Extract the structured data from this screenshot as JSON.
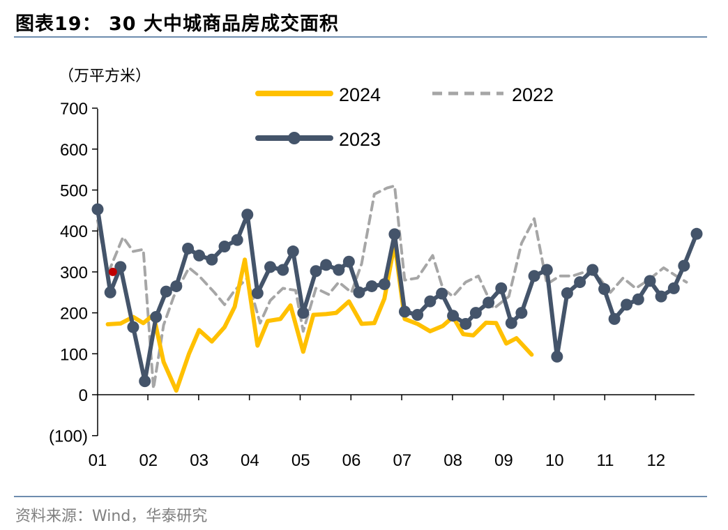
{
  "header": {
    "title": "图表19：  30 大中城商品房成交面积"
  },
  "footer": {
    "source": "资料来源：Wind，华泰研究"
  },
  "colors": {
    "s2024": "#FFC000",
    "s2022": "#A6A6A6",
    "s2023": "#44546A",
    "marker": "#C00000",
    "rule": "#6D8CAE"
  },
  "chart_data": {
    "type": "line",
    "unit_label": "（万平方米）",
    "ylim": [
      -100,
      700
    ],
    "yticks": [
      -100,
      0,
      100,
      200,
      300,
      400,
      500,
      600,
      700
    ],
    "ytick_labels": [
      "(100)",
      "0",
      "100",
      "200",
      "300",
      "400",
      "500",
      "600",
      "700"
    ],
    "xlim": [
      1,
      12.8
    ],
    "xticks": [
      1,
      2,
      3,
      4,
      5,
      6,
      7,
      8,
      9,
      10,
      11,
      12
    ],
    "xtick_labels": [
      "01",
      "02",
      "03",
      "04",
      "05",
      "06",
      "07",
      "08",
      "09",
      "10",
      "11",
      "12"
    ],
    "legend_position": "top",
    "grid": false,
    "series": [
      {
        "name": "2024",
        "style": "solid",
        "x": [
          1.2,
          1.45,
          1.7,
          1.9,
          2.1,
          2.3,
          2.55,
          2.8,
          3.0,
          3.25,
          3.5,
          3.7,
          3.9,
          4.15,
          4.35,
          4.6,
          4.8,
          5.05,
          5.25,
          5.5,
          5.7,
          5.95,
          6.2,
          6.45,
          6.65,
          6.85,
          7.05,
          7.3,
          7.55,
          7.8,
          8.0,
          8.2,
          8.4,
          8.65,
          8.85,
          9.05,
          9.25,
          9.55
        ],
        "y": [
          172,
          174,
          190,
          175,
          195,
          80,
          10,
          100,
          158,
          130,
          165,
          215,
          330,
          120,
          180,
          185,
          218,
          105,
          195,
          197,
          200,
          228,
          173,
          175,
          235,
          370,
          185,
          173,
          155,
          168,
          190,
          148,
          145,
          176,
          175,
          125,
          138,
          98
        ]
      },
      {
        "name": "2022",
        "style": "dashed",
        "x": [
          1.0,
          1.2,
          1.5,
          1.7,
          1.9,
          2.1,
          2.3,
          2.5,
          2.8,
          3.0,
          3.3,
          3.5,
          3.7,
          3.95,
          4.2,
          4.4,
          4.65,
          4.9,
          5.05,
          5.3,
          5.55,
          5.75,
          6.0,
          6.2,
          6.45,
          6.7,
          6.85,
          7.05,
          7.3,
          7.6,
          7.8,
          8.0,
          8.25,
          8.5,
          8.8,
          9.1,
          9.35,
          9.6,
          9.85,
          10.1,
          10.35,
          10.6,
          10.85,
          11.1,
          11.35,
          11.6,
          11.85,
          12.15,
          12.4,
          12.6
        ],
        "y": [
          425,
          295,
          385,
          350,
          355,
          15,
          170,
          240,
          310,
          290,
          250,
          220,
          255,
          285,
          175,
          230,
          260,
          255,
          155,
          260,
          245,
          275,
          250,
          320,
          490,
          505,
          510,
          280,
          285,
          340,
          260,
          240,
          275,
          290,
          210,
          240,
          370,
          430,
          270,
          290,
          290,
          300,
          290,
          250,
          285,
          260,
          280,
          310,
          290,
          275
        ]
      },
      {
        "name": "2023",
        "style": "solid-marker",
        "x": [
          1.0,
          1.25,
          1.45,
          1.7,
          1.93,
          2.15,
          2.35,
          2.55,
          2.78,
          3.0,
          3.25,
          3.5,
          3.75,
          3.95,
          4.15,
          4.4,
          4.65,
          4.85,
          5.05,
          5.3,
          5.5,
          5.75,
          5.95,
          6.15,
          6.4,
          6.65,
          6.85,
          7.05,
          7.3,
          7.55,
          7.78,
          8.0,
          8.25,
          8.45,
          8.7,
          8.95,
          9.15,
          9.35,
          9.6,
          9.85,
          10.05,
          10.25,
          10.5,
          10.75,
          10.98,
          11.18,
          11.42,
          11.65,
          11.88,
          12.1,
          12.35,
          12.55,
          12.8
        ],
        "y": [
          453,
          250,
          312,
          165,
          33,
          190,
          252,
          265,
          357,
          340,
          330,
          362,
          378,
          440,
          248,
          312,
          305,
          350,
          200,
          302,
          317,
          305,
          325,
          250,
          265,
          270,
          392,
          203,
          195,
          228,
          247,
          193,
          173,
          200,
          225,
          260,
          175,
          200,
          290,
          305,
          93,
          248,
          275,
          305,
          258,
          185,
          220,
          233,
          278,
          240,
          260,
          315,
          393
        ]
      }
    ],
    "highlight_marker": {
      "x": 1.3,
      "y": 300
    }
  }
}
